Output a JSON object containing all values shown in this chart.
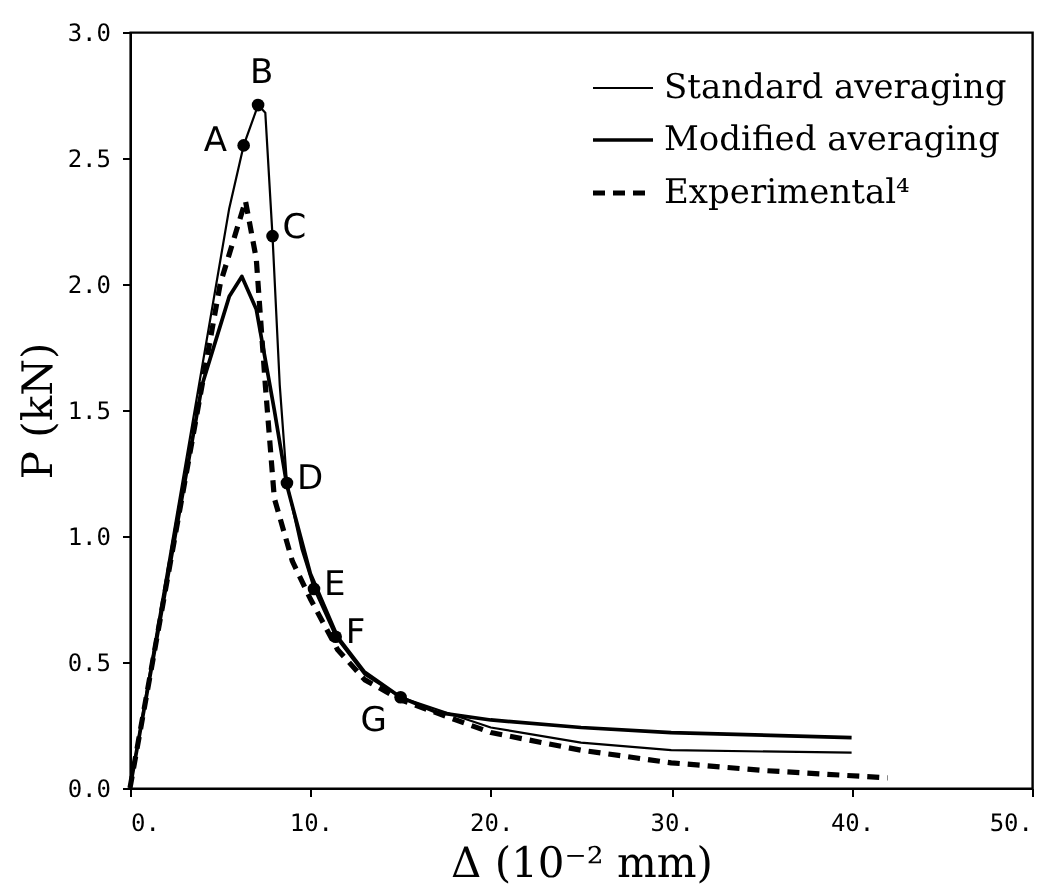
{
  "chart_data": {
    "type": "line",
    "xlabel": "Δ (10⁻² mm)",
    "ylabel": "P (kN)",
    "xlim": [
      0,
      50
    ],
    "ylim": [
      0,
      3.0
    ],
    "xticks": [
      {
        "value": 0,
        "label": "0."
      },
      {
        "value": 10,
        "label": "10."
      },
      {
        "value": 20,
        "label": "20."
      },
      {
        "value": 30,
        "label": "30."
      },
      {
        "value": 40,
        "label": "40."
      },
      {
        "value": 50,
        "label": "50."
      }
    ],
    "yticks": [
      {
        "value": 0,
        "label": "0.0"
      },
      0.5,
      {
        "value": 1,
        "label": "1.0"
      },
      1.5,
      {
        "value": 2,
        "label": "2.0"
      },
      2.5,
      {
        "value": 3,
        "label": "3.0"
      }
    ],
    "grid": false,
    "legend": "top right",
    "marker": "none",
    "series": [
      {
        "name": "Standard averaging",
        "color": "#000000",
        "line_style": "solid",
        "x": [
          0,
          5.5,
          6.3,
          7.1,
          7.5,
          7.9,
          8.3,
          8.7,
          9.5,
          10.2,
          11.4,
          13,
          15,
          20,
          25,
          30,
          40
        ],
        "values": [
          0,
          2.3,
          2.55,
          2.71,
          2.68,
          2.19,
          1.6,
          1.21,
          0.95,
          0.79,
          0.6,
          0.45,
          0.36,
          0.24,
          0.18,
          0.15,
          0.14
        ]
      },
      {
        "name": "Modified averaging",
        "color": "#000000",
        "line_style": "solid",
        "x": [
          0,
          4,
          5.5,
          6.2,
          7,
          8,
          8.7,
          10,
          11.5,
          13,
          15,
          17,
          20,
          25,
          30,
          40
        ],
        "values": [
          0,
          1.6,
          1.95,
          2.03,
          1.9,
          1.5,
          1.2,
          0.85,
          0.6,
          0.46,
          0.36,
          0.3,
          0.27,
          0.24,
          0.22,
          0.2
        ]
      },
      {
        "name": "Experimental⁴",
        "color": "#000000",
        "line_style": "dashed",
        "x": [
          0,
          5,
          6.4,
          7,
          7.5,
          8,
          9,
          10,
          11.5,
          13,
          15,
          20,
          25,
          30,
          35,
          42
        ],
        "values": [
          0,
          2.0,
          2.33,
          2.1,
          1.6,
          1.15,
          0.9,
          0.75,
          0.55,
          0.43,
          0.35,
          0.22,
          0.15,
          0.1,
          0.07,
          0.04
        ]
      }
    ],
    "annotations": [
      {
        "text": "A",
        "x": 6.3,
        "y": 2.55
      },
      {
        "text": "B",
        "x": 7.1,
        "y": 2.71
      },
      {
        "text": "C",
        "x": 7.9,
        "y": 2.19
      },
      {
        "text": "D",
        "x": 8.7,
        "y": 1.21
      },
      {
        "text": "E",
        "x": 10.2,
        "y": 0.79
      },
      {
        "text": "F",
        "x": 11.4,
        "y": 0.6
      },
      {
        "text": "G",
        "x": 15,
        "y": 0.36
      }
    ]
  }
}
